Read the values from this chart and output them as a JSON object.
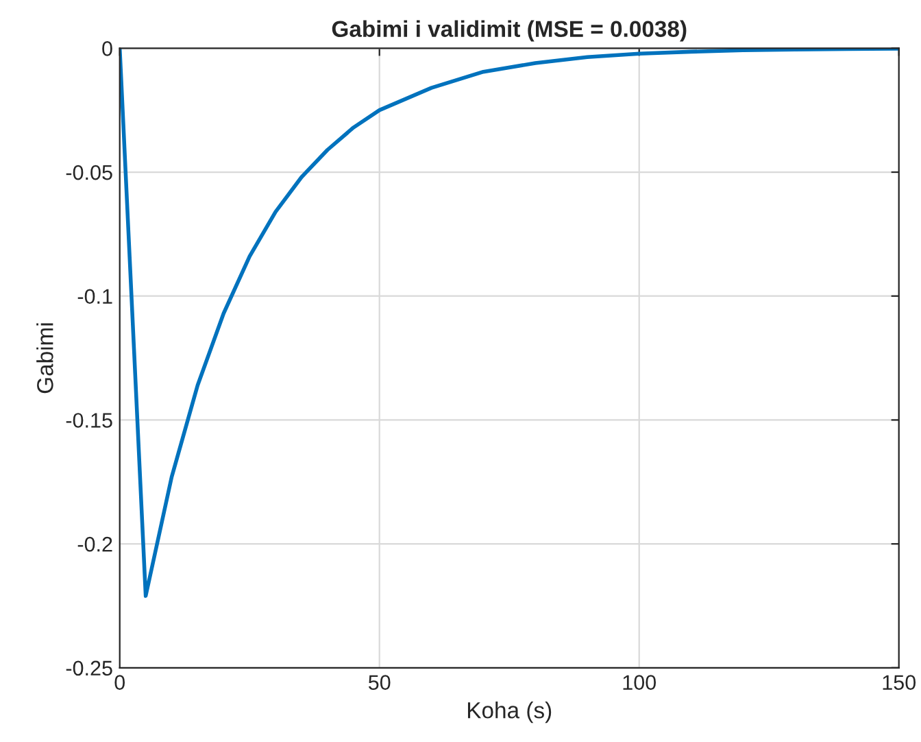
{
  "chart_data": {
    "type": "line",
    "title": "Gabimi i validimit (MSE = 0.0038)",
    "xlabel": "Koha (s)",
    "ylabel": "Gabimi",
    "series": [
      {
        "color": "#0072bd",
        "x": [
          0,
          5,
          10,
          15,
          20,
          25,
          30,
          35,
          40,
          45,
          50,
          60,
          70,
          80,
          90,
          100,
          110,
          120,
          130,
          140,
          150
        ],
        "values": [
          0,
          -0.221,
          -0.173,
          -0.136,
          -0.107,
          -0.084,
          -0.066,
          -0.052,
          -0.041,
          -0.032,
          -0.025,
          -0.016,
          -0.0095,
          -0.006,
          -0.0036,
          -0.0022,
          -0.0014,
          -0.0008,
          -0.0005,
          -0.0003,
          -0.0002
        ]
      }
    ],
    "xlim": [
      0,
      150
    ],
    "xticks": [
      0,
      50,
      100,
      150
    ],
    "ylim": [
      -0.25,
      0
    ],
    "yticks": [
      -0.25,
      -0.2,
      -0.15,
      -0.1,
      -0.05,
      0
    ],
    "grid": true,
    "marker": "none",
    "line_style": "solid"
  }
}
